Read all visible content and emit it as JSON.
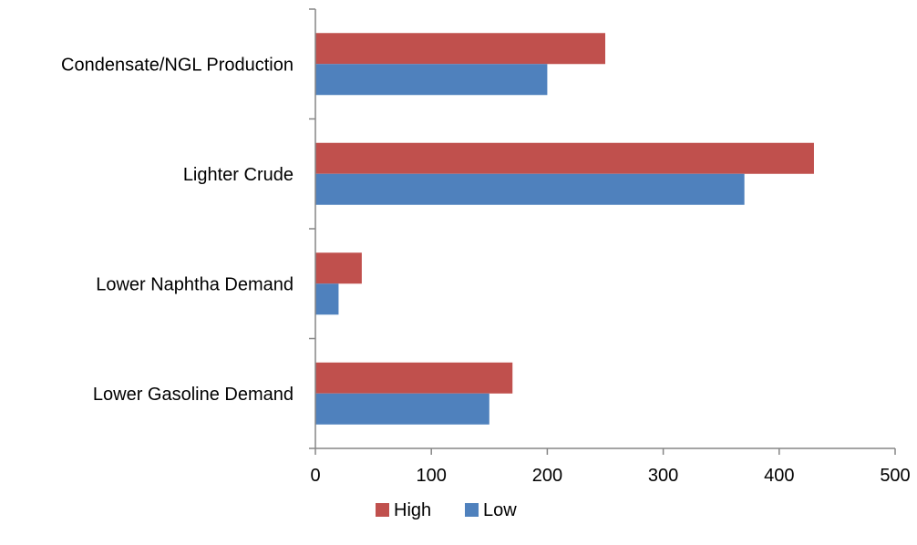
{
  "chart_data": {
    "type": "bar",
    "orientation": "horizontal",
    "categories": [
      "Condensate/NGL Production",
      "Lighter Crude",
      "Lower Naphtha Demand",
      "Lower Gasoline Demand"
    ],
    "series": [
      {
        "name": "High",
        "values": [
          250,
          430,
          40,
          170
        ],
        "color": "#c0504d"
      },
      {
        "name": "Low",
        "values": [
          200,
          370,
          20,
          150
        ],
        "color": "#4f81bd"
      }
    ],
    "xlim": [
      0,
      500
    ],
    "xticks": [
      0,
      100,
      200,
      300,
      400,
      500
    ],
    "grid": false,
    "legend_position": "bottom"
  }
}
